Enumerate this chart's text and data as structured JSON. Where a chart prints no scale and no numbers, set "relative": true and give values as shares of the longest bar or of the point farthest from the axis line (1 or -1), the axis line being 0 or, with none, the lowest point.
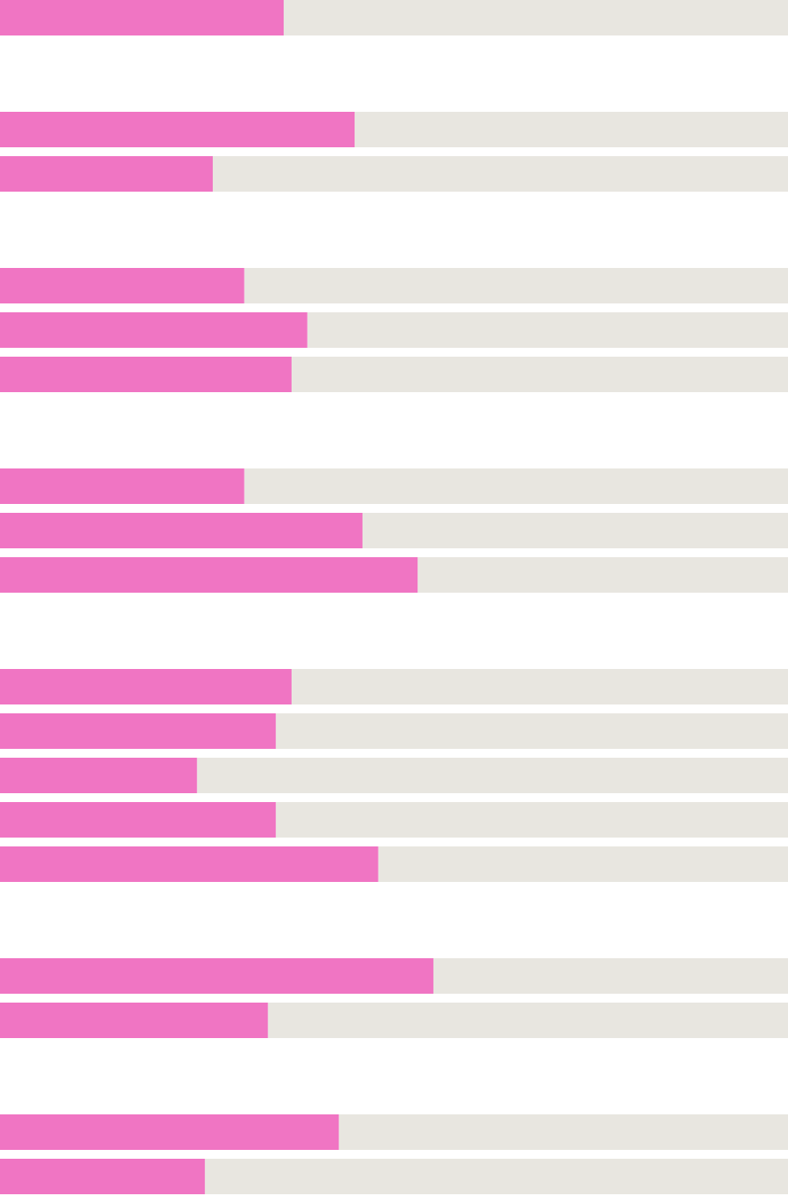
{
  "chart_data": [
    {
      "type": "bar",
      "orientation": "horizontal",
      "stacked": true,
      "relative": true,
      "categories": [
        null
      ],
      "series": [
        {
          "color": "#f075c3",
          "values": [
            0.36
          ]
        },
        {
          "color": "#e8e6e0",
          "values": [
            0.64
          ]
        }
      ]
    },
    {
      "type": "bar",
      "orientation": "horizontal",
      "stacked": true,
      "relative": true,
      "categories": [
        null,
        null
      ],
      "series": [
        {
          "color": "#f075c3",
          "values": [
            0.45,
            0.27
          ]
        },
        {
          "color": "#e8e6e0",
          "values": [
            0.55,
            0.73
          ]
        }
      ]
    },
    {
      "type": "bar",
      "orientation": "horizontal",
      "stacked": true,
      "relative": true,
      "categories": [
        null,
        null,
        null
      ],
      "series": [
        {
          "color": "#f075c3",
          "values": [
            0.31,
            0.39,
            0.37
          ]
        },
        {
          "color": "#e8e6e0",
          "values": [
            0.69,
            0.61,
            0.63
          ]
        }
      ]
    },
    {
      "type": "bar",
      "orientation": "horizontal",
      "stacked": true,
      "relative": true,
      "categories": [
        null,
        null,
        null
      ],
      "series": [
        {
          "color": "#f075c3",
          "values": [
            0.31,
            0.46,
            0.53
          ]
        },
        {
          "color": "#e8e6e0",
          "values": [
            0.69,
            0.54,
            0.47
          ]
        }
      ]
    },
    {
      "type": "bar",
      "orientation": "horizontal",
      "stacked": true,
      "relative": true,
      "categories": [
        null,
        null,
        null,
        null,
        null
      ],
      "series": [
        {
          "color": "#f075c3",
          "values": [
            0.37,
            0.35,
            0.25,
            0.35,
            0.48
          ]
        },
        {
          "color": "#e8e6e0",
          "values": [
            0.63,
            0.65,
            0.75,
            0.65,
            0.52
          ]
        }
      ]
    },
    {
      "type": "bar",
      "orientation": "horizontal",
      "stacked": true,
      "relative": true,
      "categories": [
        null,
        null
      ],
      "series": [
        {
          "color": "#f075c3",
          "values": [
            0.55,
            0.34
          ]
        },
        {
          "color": "#e8e6e0",
          "values": [
            0.45,
            0.66
          ]
        }
      ]
    },
    {
      "type": "bar",
      "orientation": "horizontal",
      "stacked": true,
      "relative": true,
      "categories": [
        null,
        null
      ],
      "series": [
        {
          "color": "#f075c3",
          "values": [
            0.43,
            0.26
          ]
        },
        {
          "color": "#e8e6e0",
          "values": [
            0.57,
            0.74
          ]
        }
      ]
    }
  ]
}
